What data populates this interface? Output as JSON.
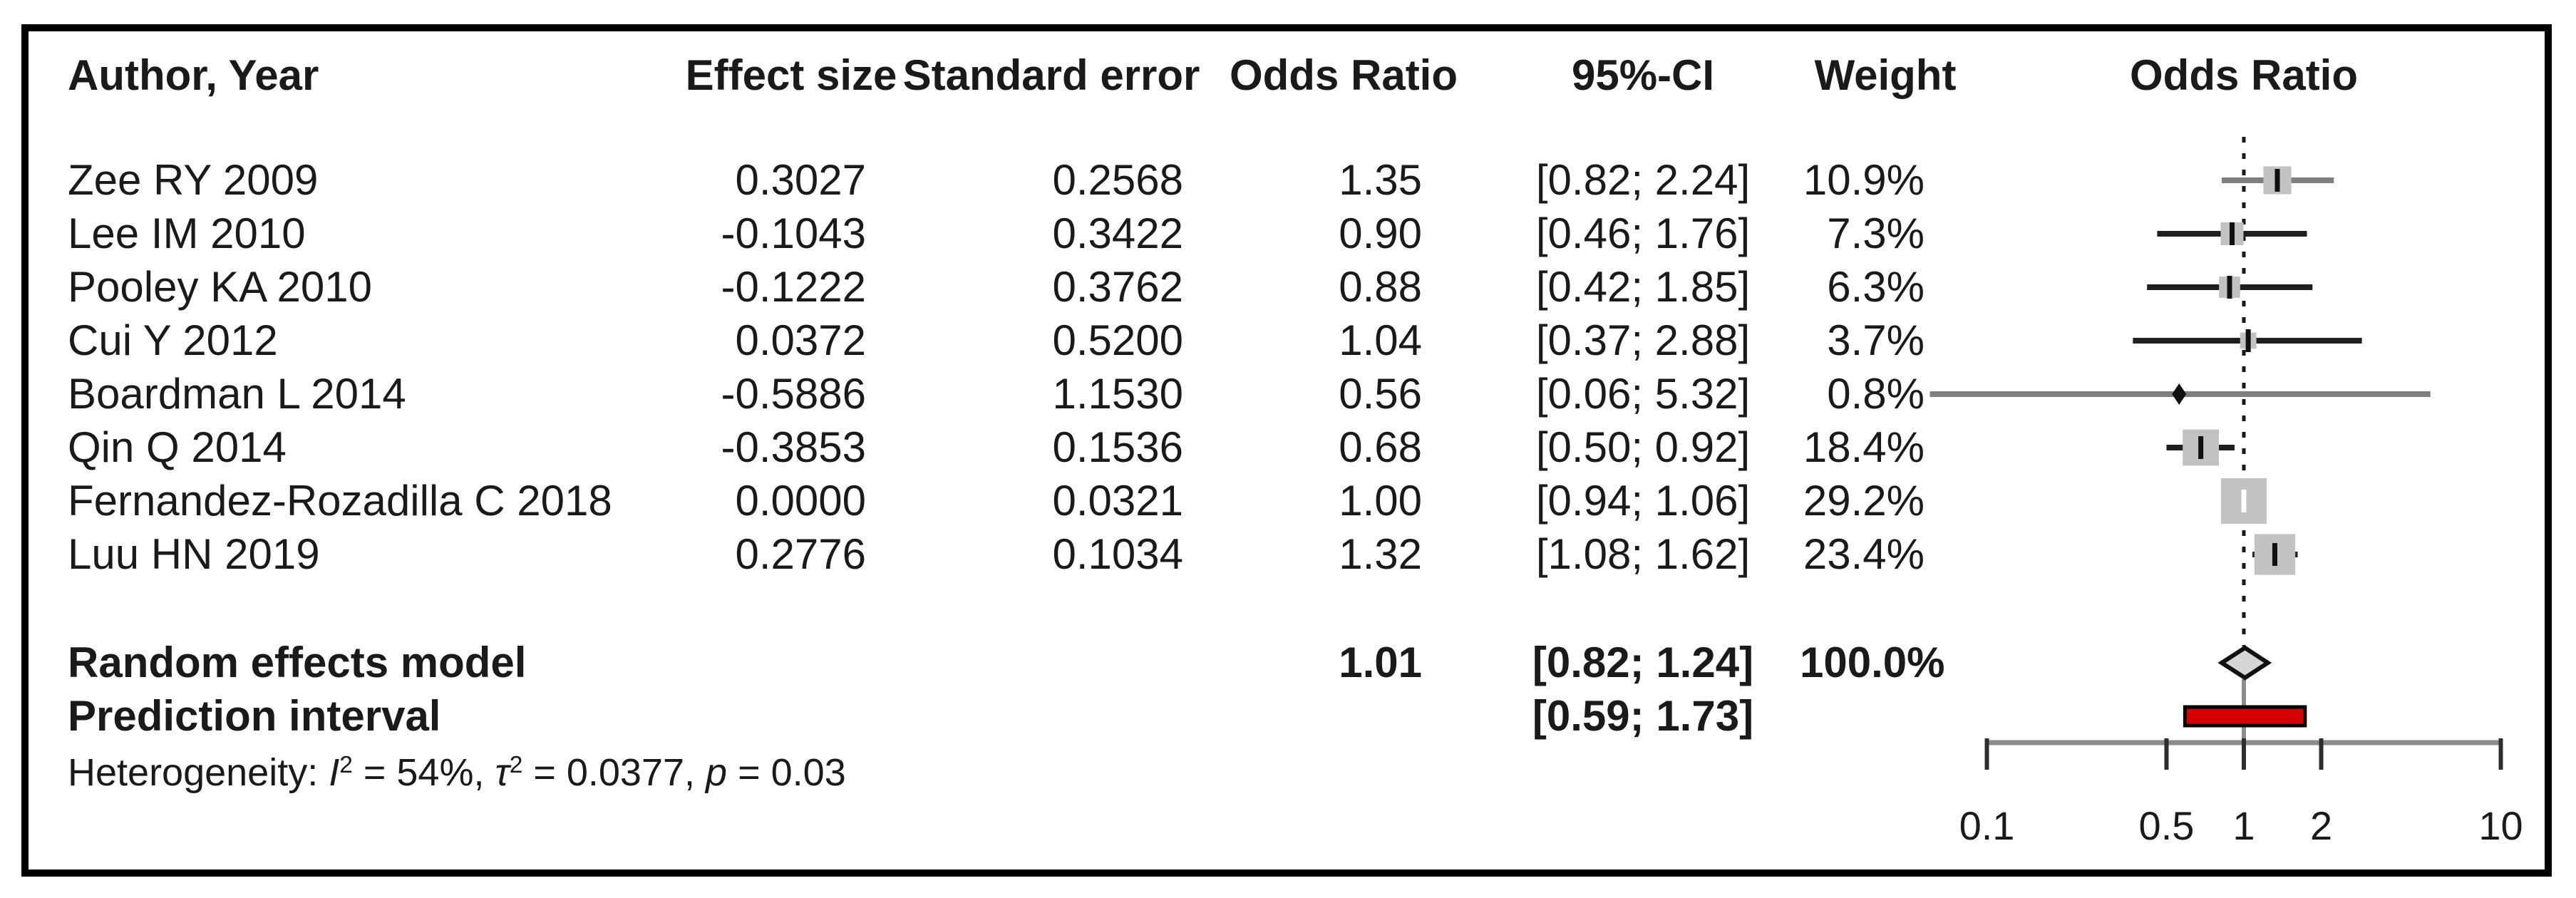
{
  "header": {
    "author": "Author, Year",
    "effect_size": "Effect size",
    "standard_error": "Standard error",
    "odds_ratio": "Odds Ratio",
    "ci": "95%-CI",
    "weight": "Weight",
    "plot_title": "Odds Ratio"
  },
  "studies": [
    {
      "author": "Zee RY 2009",
      "effect_size": "0.3027",
      "se": "0.2568",
      "or": "1.35",
      "ci": "[0.82; 2.24]",
      "weight": "10.9%"
    },
    {
      "author": "Lee IM 2010",
      "effect_size": "-0.1043",
      "se": "0.3422",
      "or": "0.90",
      "ci": "[0.46; 1.76]",
      "weight": "7.3%"
    },
    {
      "author": "Pooley KA 2010",
      "effect_size": "-0.1222",
      "se": "0.3762",
      "or": "0.88",
      "ci": "[0.42; 1.85]",
      "weight": "6.3%"
    },
    {
      "author": "Cui Y 2012",
      "effect_size": "0.0372",
      "se": "0.5200",
      "or": "1.04",
      "ci": "[0.37; 2.88]",
      "weight": "3.7%"
    },
    {
      "author": "Boardman L 2014",
      "effect_size": "-0.5886",
      "se": "1.1530",
      "or": "0.56",
      "ci": "[0.06; 5.32]",
      "weight": "0.8%"
    },
    {
      "author": "Qin Q 2014",
      "effect_size": "-0.3853",
      "se": "0.1536",
      "or": "0.68",
      "ci": "[0.50; 0.92]",
      "weight": "18.4%"
    },
    {
      "author": "Fernandez-Rozadilla C 2018",
      "effect_size": "0.0000",
      "se": "0.0321",
      "or": "1.00",
      "ci": "[0.94; 1.06]",
      "weight": "29.2%"
    },
    {
      "author": "Luu HN 2019",
      "effect_size": "0.2776",
      "se": "0.1034",
      "or": "1.32",
      "ci": "[1.08; 1.62]",
      "weight": "23.4%"
    }
  ],
  "summary": {
    "random_label": "Random effects model",
    "random_or": "1.01",
    "random_ci": "[0.82; 1.24]",
    "random_weight": "100.0%",
    "prediction_label": "Prediction interval",
    "prediction_ci": "[0.59; 1.73]",
    "heterogeneity": {
      "prefix": "Heterogeneity: ",
      "i": "I",
      "i_sup": "2",
      "seg1": " = 54%, ",
      "tau": "τ",
      "tau_sup": "2",
      "seg2": " = 0.0377, ",
      "p": "p",
      "seg3": " = 0.03"
    }
  },
  "chart_data": {
    "type": "scatter",
    "subtype": "forest-plot",
    "title": "Odds Ratio",
    "x_scale": "log10",
    "x_ticks": [
      0.1,
      0.5,
      1,
      2,
      10
    ],
    "x_tick_labels": [
      "0.1",
      "0.5",
      "1",
      "2",
      "10"
    ],
    "xlim": [
      0.055,
      10
    ],
    "reference_line": 1,
    "studies": [
      {
        "label": "Zee RY 2009",
        "effect_size": 0.3027,
        "se": 0.2568,
        "or": 1.35,
        "ci_low": 0.82,
        "ci_high": 2.24,
        "weight_pct": 10.9
      },
      {
        "label": "Lee IM 2010",
        "effect_size": -0.1043,
        "se": 0.3422,
        "or": 0.9,
        "ci_low": 0.46,
        "ci_high": 1.76,
        "weight_pct": 7.3
      },
      {
        "label": "Pooley KA 2010",
        "effect_size": -0.1222,
        "se": 0.3762,
        "or": 0.88,
        "ci_low": 0.42,
        "ci_high": 1.85,
        "weight_pct": 6.3
      },
      {
        "label": "Cui Y 2012",
        "effect_size": 0.0372,
        "se": 0.52,
        "or": 1.04,
        "ci_low": 0.37,
        "ci_high": 2.88,
        "weight_pct": 3.7
      },
      {
        "label": "Boardman L 2014",
        "effect_size": -0.5886,
        "se": 1.153,
        "or": 0.56,
        "ci_low": 0.06,
        "ci_high": 5.32,
        "weight_pct": 0.8
      },
      {
        "label": "Qin Q 2014",
        "effect_size": -0.3853,
        "se": 0.1536,
        "or": 0.68,
        "ci_low": 0.5,
        "ci_high": 0.92,
        "weight_pct": 18.4
      },
      {
        "label": "Fernandez-Rozadilla C 2018",
        "effect_size": 0.0,
        "se": 0.0321,
        "or": 1.0,
        "ci_low": 0.94,
        "ci_high": 1.06,
        "weight_pct": 29.2
      },
      {
        "label": "Luu HN 2019",
        "effect_size": 0.2776,
        "se": 0.1034,
        "or": 1.32,
        "ci_low": 1.08,
        "ci_high": 1.62,
        "weight_pct": 23.4
      }
    ],
    "summary_diamond": {
      "label": "Random effects model",
      "or": 1.01,
      "ci_low": 0.82,
      "ci_high": 1.24,
      "weight_pct": 100.0
    },
    "prediction_interval": {
      "label": "Prediction interval",
      "ci_low": 0.59,
      "ci_high": 1.73
    },
    "heterogeneity": {
      "I2_pct": 54,
      "tau2": 0.0377,
      "p": 0.03
    },
    "colors": {
      "square": "#c2c2c2",
      "ci_line": "#1f1f1f",
      "ci_line_light": "#7f7f7f",
      "light_rows": [
        0,
        4
      ],
      "point_tick": "#111111",
      "point_tick_on_large_square": "#ffffff",
      "diamond_fill": "#d6d6d6",
      "diamond_stroke": "#111111",
      "prediction_fill": "#d40000",
      "prediction_stroke": "#000000",
      "axis": "#8c8c8c",
      "tick": "#2e2e2e",
      "tick_label": "#1a1a1a",
      "ref_line": "#1a1a1a"
    }
  }
}
